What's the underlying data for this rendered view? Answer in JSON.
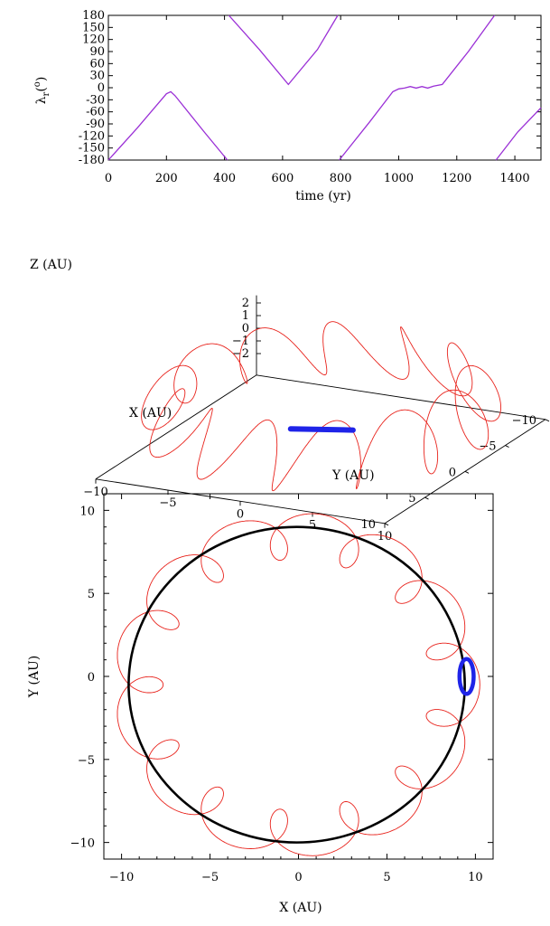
{
  "chart_data": [
    {
      "type": "line",
      "xlabel": "time (yr)",
      "ylabel_main": "λ",
      "ylabel_sub": "r",
      "ylabel_sup": "o",
      "xlim": [
        0,
        1490
      ],
      "ylim": [
        -180,
        180
      ],
      "xticks": [
        "0",
        "200",
        "400",
        "600",
        "800",
        "1000",
        "1200",
        "1400"
      ],
      "xtick_values": [
        0,
        200,
        400,
        600,
        800,
        1000,
        1200,
        1400
      ],
      "yticks": [
        "180",
        "150",
        "120",
        "90",
        "60",
        "30",
        "0",
        "-30",
        "-60",
        "-90",
        "-120",
        "-150",
        "-180"
      ],
      "ytick_values": [
        180,
        150,
        120,
        90,
        60,
        30,
        0,
        -30,
        -60,
        -90,
        -120,
        -150,
        -180
      ],
      "line_color": "#9a2fd6",
      "series": [
        {
          "x": [
            0,
            100,
            200,
            215,
            230,
            330,
            410
          ],
          "y": [
            -180,
            -100,
            -15,
            -10,
            -20,
            -110,
            -180
          ]
        },
        {
          "x": [
            415,
            520,
            620,
            720,
            790
          ],
          "y": [
            180,
            95,
            8,
            95,
            180
          ]
        },
        {
          "x": [
            795,
            900,
            980,
            1000,
            1020,
            1040,
            1060,
            1080,
            1100,
            1120,
            1150,
            1240,
            1330
          ],
          "y": [
            -180,
            -85,
            -10,
            -3,
            -1,
            3,
            -1,
            3,
            -1,
            4,
            8,
            90,
            180
          ]
        },
        {
          "x": [
            1335,
            1410,
            1490
          ],
          "y": [
            -180,
            -110,
            -50
          ]
        }
      ]
    },
    {
      "type": "scatter",
      "xlabel": "X (AU)",
      "ylabel": "Y (AU)",
      "zlabel": "Z (AU)",
      "xticks": [
        "-10",
        "-5",
        "0",
        "5",
        "10"
      ],
      "yticks": [
        "-10",
        "-5",
        "0",
        "5",
        "10"
      ],
      "zticks": [
        "2",
        "1",
        "0",
        "-1",
        "-2"
      ],
      "orbit_color": "#e8231c",
      "object_color": "#1f24e8",
      "orbit_radius": 9.6,
      "loops": 13,
      "loop_radius": 1.5,
      "loop_height": 2.5
    },
    {
      "type": "scatter",
      "xlabel": "X (AU)",
      "ylabel": "Y (AU)",
      "xlim": [
        -11,
        11
      ],
      "ylim": [
        -11,
        11
      ],
      "xticks": [
        "-10",
        "-5",
        "0",
        "5",
        "10"
      ],
      "xtick_values": [
        -10,
        -5,
        0,
        5,
        10
      ],
      "yticks": [
        "10",
        "5",
        "0",
        "-5",
        "-10"
      ],
      "ytick_values": [
        10,
        5,
        0,
        -5,
        -10
      ],
      "planet_orbit": {
        "color": "#000000",
        "cx": -0.1,
        "cy": -0.5,
        "r": 9.5
      },
      "tadpole_orbit": {
        "color": "#e8231c",
        "loops": 13,
        "guiding_r": 8.95,
        "epicycle_r": 1.4,
        "cx": -0.1,
        "cy": -0.5
      },
      "trojan_object": {
        "color": "#1f24e8",
        "cx": 9.5,
        "cy": 0.0,
        "rx": 0.4,
        "ry": 1.05
      }
    }
  ]
}
